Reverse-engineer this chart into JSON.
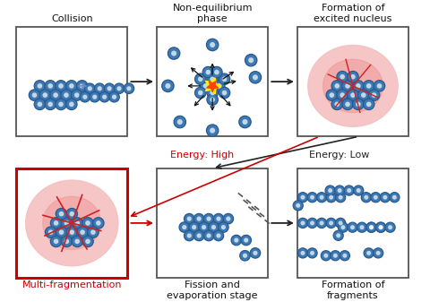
{
  "bg": "#ffffff",
  "box_dark": "#444444",
  "box_red": "#cc0000",
  "nuc_fill": "#3d7ab5",
  "nuc_edge": "#2a5a8a",
  "nuc_white": "#ffffff",
  "pink_light": "#f5c0c0",
  "pink_mid": "#ee9999",
  "red_line": "#cc2222",
  "arrow_black": "#222222",
  "arrow_red": "#cc0000",
  "arrow_blue": "#6688cc",
  "yellow_star": "#ffee00",
  "orange_star": "#ff4400",
  "label_fontsize": 8.0,
  "label_color": "#111111",
  "red_label_color": "#cc0000",
  "box1_label": "Collision",
  "box2_label": "Non-equilibrium\nphase",
  "box3_label": "Formation of\nexcited nucleus",
  "box4_label": "Multi-fragmentation",
  "box5_label": "Fission and\nevaporation stage",
  "box6_label": "Formation of\nfragments",
  "energy_high": "Energy: High",
  "energy_low": "Energy: Low"
}
